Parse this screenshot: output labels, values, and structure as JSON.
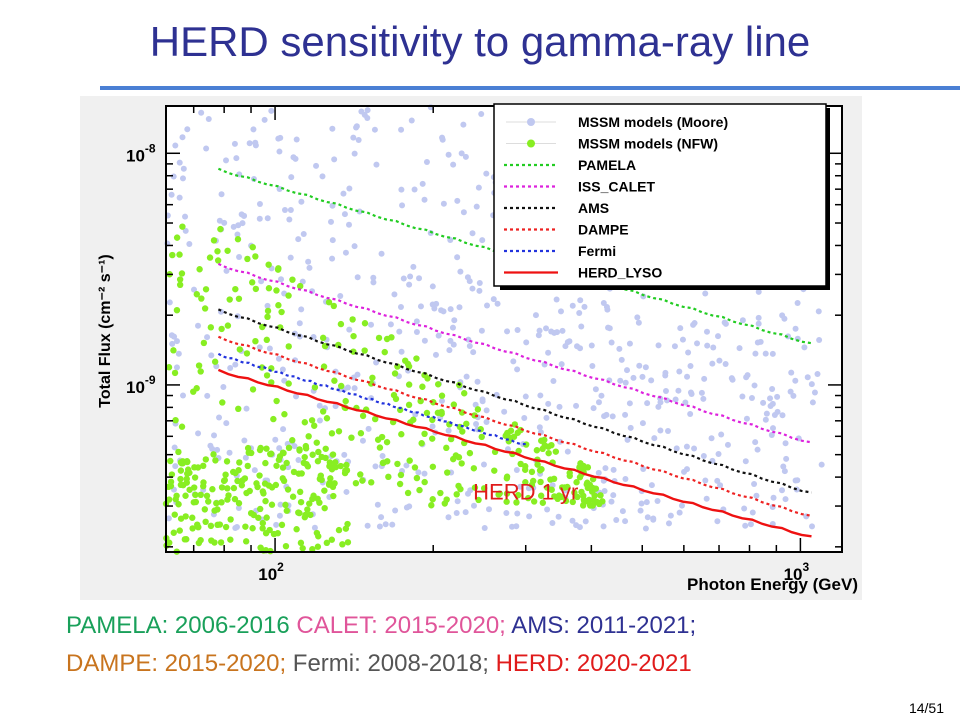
{
  "slide": {
    "title": "HERD sensitivity to gamma-ray line",
    "page": "14/51"
  },
  "notes": [
    {
      "text": "PAMELA: 2006-2016",
      "color": "#19a05a"
    },
    {
      "text": " CALET: 2015-2020;",
      "color": "#e0559a"
    },
    {
      "text": " AMS: 2011-2021;",
      "color": "#2e3192"
    },
    {
      "text": "DAMPE: 2015-2020;",
      "color": "#c8741e"
    },
    {
      "text": " Fermi: 2008-2018;",
      "color": "#555555"
    },
    {
      "text": " HERD: 2020-2021",
      "color": "#e01b1b"
    }
  ],
  "colors": {
    "moore": "#c0c8f0",
    "nfw": "#88ee22",
    "frame_bg": "#f0f0f0"
  },
  "chart_data": {
    "type": "line",
    "xlabel": "Photon Energy (GeV)",
    "ylabel": "Total Flux (cm⁻² s⁻¹)",
    "xscale": "log",
    "yscale": "log",
    "xlim": [
      62,
      1200
    ],
    "ylim": [
      1.9e-10,
      1.6e-08
    ],
    "xticks": [
      {
        "value": 100,
        "label": "10",
        "sup": "2"
      },
      {
        "value": 1000,
        "label": "10",
        "sup": "3"
      }
    ],
    "yticks": [
      {
        "value": 1e-08,
        "label": "10",
        "sup": "-8"
      },
      {
        "value": 1e-09,
        "label": "10",
        "sup": "-9"
      }
    ],
    "legend_position": "top-right",
    "annotation": {
      "text": "HERD 1 yr",
      "x": 300,
      "y": 3.2e-10,
      "color": "#e01b1b"
    },
    "series": [
      {
        "name": "MSSM models (Moore)",
        "style": "markers",
        "color": "#c0c8f0"
      },
      {
        "name": "MSSM models (NFW)",
        "style": "markers",
        "color": "#88ee22"
      },
      {
        "name": "PAMELA",
        "style": "dotted",
        "color": "#22cc22",
        "x": [
          78,
          1050
        ],
        "y": [
          8.5e-09,
          1.5e-09
        ]
      },
      {
        "name": "ISS_CALET",
        "style": "dotted",
        "color": "#dd22dd",
        "x": [
          78,
          1050
        ],
        "y": [
          3.3e-09,
          5.6e-10
        ]
      },
      {
        "name": "AMS",
        "style": "dotted",
        "color": "#111111",
        "x": [
          78,
          1050
        ],
        "y": [
          2.1e-09,
          3.4e-10
        ]
      },
      {
        "name": "DAMPE",
        "style": "dotted",
        "color": "#ee2222",
        "x": [
          78,
          1050
        ],
        "y": [
          1.6e-09,
          2.7e-10
        ]
      },
      {
        "name": "Fermi",
        "style": "dotted",
        "color": "#2233dd",
        "x": [
          78,
          300
        ],
        "y": [
          1.35e-09,
          5.5e-10
        ]
      },
      {
        "name": "HERD_LYSO",
        "style": "solid",
        "color": "#ee1111",
        "x": [
          78,
          1050
        ],
        "y": [
          1.15e-09,
          2.2e-10
        ]
      }
    ]
  }
}
